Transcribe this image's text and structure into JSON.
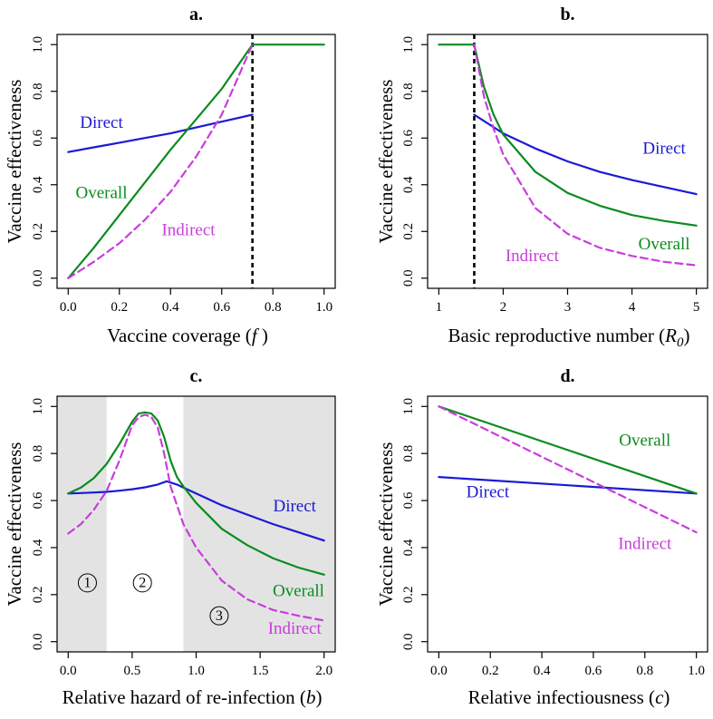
{
  "colors": {
    "direct": "#1a1ad6",
    "overall": "#0a8c1e",
    "indirect": "#c83ddc",
    "shade": "#e3e3e3",
    "axis": "#000000"
  },
  "chart_data": [
    {
      "id": "a",
      "type": "line",
      "title": "a.",
      "xlabel": "Vaccine coverage (",
      "xlabel_var": "f",
      "xlabel_end": " )",
      "ylabel": "Vaccine effectiveness",
      "xlim": [
        0,
        1
      ],
      "ylim": [
        0,
        1
      ],
      "xticks": [
        0,
        0.2,
        0.4,
        0.6,
        0.8,
        1
      ],
      "xtick_labels": [
        "0.0",
        "0.2",
        "0.4",
        "0.6",
        "0.8",
        "1.0"
      ],
      "yticks": [
        0,
        0.2,
        0.4,
        0.6,
        0.8,
        1
      ],
      "ytick_labels": [
        "0.0",
        "0.2",
        "0.4",
        "0.6",
        "0.8",
        "1.0"
      ],
      "vline": 0.72,
      "series": [
        {
          "name": "Direct",
          "style": "direct",
          "x": [
            0,
            0.1,
            0.2,
            0.3,
            0.4,
            0.5,
            0.6,
            0.72
          ],
          "y": [
            0.54,
            0.56,
            0.58,
            0.6,
            0.62,
            0.645,
            0.67,
            0.7
          ]
        },
        {
          "name": "Overall",
          "style": "overall",
          "x": [
            0,
            0.1,
            0.2,
            0.3,
            0.4,
            0.5,
            0.6,
            0.72,
            1
          ],
          "y": [
            0,
            0.13,
            0.27,
            0.41,
            0.55,
            0.68,
            0.81,
            1,
            1
          ]
        },
        {
          "name": "Indirect",
          "style": "indirect",
          "dashed": true,
          "x": [
            0,
            0.1,
            0.2,
            0.3,
            0.4,
            0.5,
            0.6,
            0.72
          ],
          "y": [
            0,
            0.07,
            0.15,
            0.25,
            0.37,
            0.52,
            0.7,
            1
          ]
        }
      ],
      "labels": [
        {
          "text": "Direct",
          "style": "direct",
          "x": 0.13,
          "y": 0.66
        },
        {
          "text": "Overall",
          "style": "overall",
          "x": 0.13,
          "y": 0.36
        },
        {
          "text": "Indirect",
          "style": "indirect",
          "x": 0.47,
          "y": 0.2
        }
      ]
    },
    {
      "id": "b",
      "type": "line",
      "title": "b.",
      "xlabel": "Basic reproductive number (",
      "xlabel_var": "R",
      "xlabel_sub": "0",
      "xlabel_end": ")",
      "ylabel": "Vaccine effectiveness",
      "xlim": [
        1,
        5
      ],
      "ylim": [
        0,
        1
      ],
      "xticks": [
        1,
        2,
        3,
        4,
        5
      ],
      "xtick_labels": [
        "1",
        "2",
        "3",
        "4",
        "5"
      ],
      "yticks": [
        0,
        0.2,
        0.4,
        0.6,
        0.8,
        1
      ],
      "ytick_labels": [
        "0.0",
        "0.2",
        "0.4",
        "0.6",
        "0.8",
        "1.0"
      ],
      "vline": 1.55,
      "series": [
        {
          "name": "Direct",
          "style": "direct",
          "x": [
            1.55,
            2,
            2.5,
            3,
            3.5,
            4,
            4.5,
            5
          ],
          "y": [
            0.7,
            0.62,
            0.555,
            0.5,
            0.455,
            0.42,
            0.39,
            0.36
          ]
        },
        {
          "name": "Overall",
          "style": "overall",
          "x": [
            1,
            1.55,
            1.7,
            1.85,
            2,
            2.5,
            3,
            3.5,
            4,
            4.5,
            5
          ],
          "y": [
            1,
            1,
            0.82,
            0.7,
            0.615,
            0.455,
            0.365,
            0.31,
            0.27,
            0.245,
            0.225
          ]
        },
        {
          "name": "Indirect",
          "style": "indirect",
          "dashed": true,
          "x": [
            1.55,
            1.7,
            1.85,
            2,
            2.5,
            3,
            3.5,
            4,
            4.5,
            5
          ],
          "y": [
            1,
            0.78,
            0.64,
            0.53,
            0.3,
            0.19,
            0.13,
            0.095,
            0.07,
            0.055
          ]
        }
      ],
      "labels": [
        {
          "text": "Direct",
          "style": "direct",
          "x": 4.5,
          "y": 0.55
        },
        {
          "text": "Overall",
          "style": "overall",
          "x": 4.5,
          "y": 0.14
        },
        {
          "text": "Indirect",
          "style": "indirect",
          "x": 2.45,
          "y": 0.09
        }
      ]
    },
    {
      "id": "c",
      "type": "line",
      "title": "c.",
      "xlabel": "Relative hazard of re-infection (",
      "xlabel_var": "b",
      "xlabel_end": ")",
      "ylabel": "Vaccine effectiveness",
      "xlim": [
        0,
        2
      ],
      "ylim": [
        0,
        1
      ],
      "xticks": [
        0,
        0.5,
        1,
        1.5,
        2
      ],
      "xtick_labels": [
        "0.0",
        "0.5",
        "1.0",
        "1.5",
        "2.0"
      ],
      "yticks": [
        0,
        0.2,
        0.4,
        0.6,
        0.8,
        1
      ],
      "ytick_labels": [
        "0.0",
        "0.2",
        "0.4",
        "0.6",
        "0.8",
        "1.0"
      ],
      "shaded": [
        [
          -0.1,
          0.3
        ],
        [
          0.9,
          2.1
        ]
      ],
      "region_labels": [
        {
          "text": "1",
          "x": 0.15,
          "y": 0.25
        },
        {
          "text": "2",
          "x": 0.58,
          "y": 0.25
        },
        {
          "text": "3",
          "x": 1.18,
          "y": 0.11
        }
      ],
      "series": [
        {
          "name": "Direct",
          "style": "direct",
          "x": [
            0,
            0.1,
            0.2,
            0.3,
            0.4,
            0.5,
            0.6,
            0.7,
            0.77,
            0.85,
            0.9,
            1,
            1.2,
            1.4,
            1.6,
            1.8,
            2
          ],
          "y": [
            0.63,
            0.632,
            0.634,
            0.637,
            0.642,
            0.648,
            0.656,
            0.668,
            0.682,
            0.668,
            0.655,
            0.63,
            0.58,
            0.54,
            0.5,
            0.465,
            0.43
          ]
        },
        {
          "name": "Overall",
          "style": "overall",
          "x": [
            0,
            0.1,
            0.2,
            0.3,
            0.4,
            0.5,
            0.55,
            0.6,
            0.65,
            0.7,
            0.75,
            0.8,
            0.85,
            0.9,
            1,
            1.2,
            1.4,
            1.6,
            1.8,
            2
          ],
          "y": [
            0.63,
            0.655,
            0.695,
            0.755,
            0.84,
            0.935,
            0.97,
            0.975,
            0.97,
            0.94,
            0.87,
            0.77,
            0.7,
            0.66,
            0.59,
            0.48,
            0.41,
            0.355,
            0.315,
            0.285
          ]
        },
        {
          "name": "Indirect",
          "style": "indirect",
          "dashed": true,
          "x": [
            0,
            0.1,
            0.2,
            0.3,
            0.4,
            0.5,
            0.55,
            0.6,
            0.65,
            0.7,
            0.75,
            0.8,
            0.9,
            1,
            1.2,
            1.4,
            1.6,
            1.8,
            2
          ],
          "y": [
            0.46,
            0.5,
            0.56,
            0.64,
            0.77,
            0.92,
            0.955,
            0.965,
            0.955,
            0.91,
            0.8,
            0.66,
            0.5,
            0.4,
            0.26,
            0.18,
            0.135,
            0.11,
            0.09
          ]
        }
      ],
      "labels": [
        {
          "text": "Direct",
          "style": "direct",
          "x": 1.77,
          "y": 0.57
        },
        {
          "text": "Overall",
          "style": "overall",
          "x": 1.8,
          "y": 0.21
        },
        {
          "text": "Indirect",
          "style": "indirect",
          "x": 1.77,
          "y": 0.05
        }
      ]
    },
    {
      "id": "d",
      "type": "line",
      "title": "d.",
      "xlabel": "Relative infectiousness (",
      "xlabel_var": "c",
      "xlabel_end": ")",
      "ylabel": "Vaccine effectiveness",
      "xlim": [
        0,
        1
      ],
      "ylim": [
        0,
        1
      ],
      "xticks": [
        0,
        0.2,
        0.4,
        0.6,
        0.8,
        1
      ],
      "xtick_labels": [
        "0.0",
        "0.2",
        "0.4",
        "0.6",
        "0.8",
        "1.0"
      ],
      "yticks": [
        0,
        0.2,
        0.4,
        0.6,
        0.8,
        1
      ],
      "ytick_labels": [
        "0.0",
        "0.2",
        "0.4",
        "0.6",
        "0.8",
        "1.0"
      ],
      "series": [
        {
          "name": "Direct",
          "style": "direct",
          "x": [
            0,
            1
          ],
          "y": [
            0.7,
            0.63
          ]
        },
        {
          "name": "Overall",
          "style": "overall",
          "x": [
            0,
            1
          ],
          "y": [
            1,
            0.63
          ]
        },
        {
          "name": "Indirect",
          "style": "indirect",
          "dashed": true,
          "x": [
            0,
            1
          ],
          "y": [
            1,
            0.465
          ]
        }
      ],
      "labels": [
        {
          "text": "Overall",
          "style": "overall",
          "x": 0.8,
          "y": 0.85
        },
        {
          "text": "Direct",
          "style": "direct",
          "x": 0.19,
          "y": 0.63
        },
        {
          "text": "Indirect",
          "style": "indirect",
          "x": 0.8,
          "y": 0.41
        }
      ]
    }
  ]
}
